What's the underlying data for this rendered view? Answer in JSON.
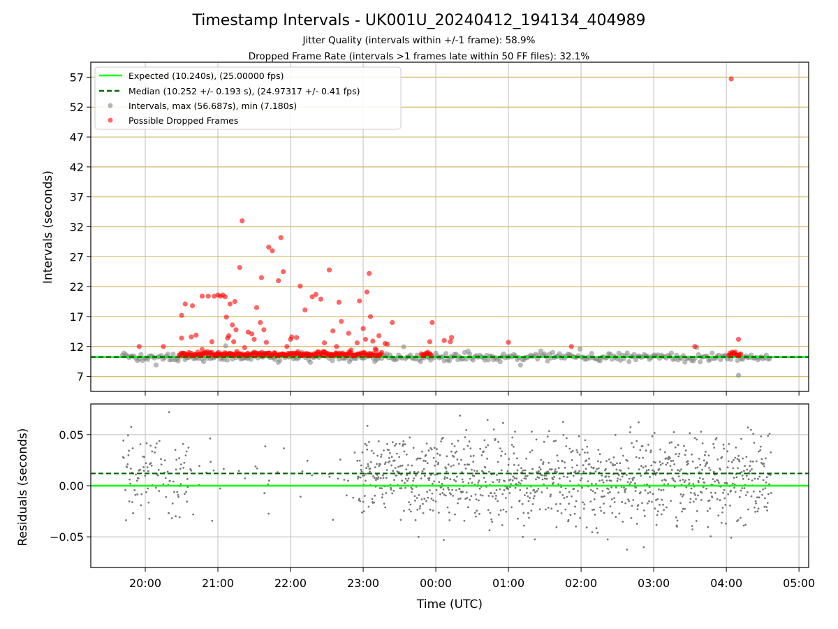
{
  "chart_data": {
    "title": "Timestamp Intervals - UK001U_20240412_194134_404989",
    "subtitle_1": "Jitter Quality (intervals within +/-1 frame): 58.9%",
    "subtitle_2": "Dropped Frame Rate (intervals >1 frames late within 50 FF files): 32.1%",
    "top_panel": {
      "type": "scatter",
      "ylabel": "Intervals (seconds)",
      "yticks": [
        "7",
        "12",
        "17",
        "22",
        "27",
        "32",
        "37",
        "42",
        "47",
        "52",
        "57"
      ],
      "ylim": [
        4.5,
        59.5
      ],
      "expected": 10.24,
      "median": 10.252,
      "legend_position": "upper-left",
      "legend": {
        "expected": "Expected (10.240s), (25.00000 fps)",
        "median": "Median (10.252 +/- 0.193 s), (24.97317 +/- 0.41 fps)",
        "intervals": "Intervals, max (56.687s), min (7.180s)",
        "dropped": "Possible Dropped Frames"
      },
      "dropped_points": [
        [
          "19:55",
          12.0
        ],
        [
          "20:15",
          12.0
        ],
        [
          "20:30",
          13.4
        ],
        [
          "20:30",
          17.2
        ],
        [
          "20:33",
          19.1
        ],
        [
          "20:38",
          13.6
        ],
        [
          "20:39",
          18.8
        ],
        [
          "20:42",
          13.9
        ],
        [
          "20:47",
          20.4
        ],
        [
          "20:52",
          20.4
        ],
        [
          "20:47",
          11.5
        ],
        [
          "20:55",
          12.8
        ],
        [
          "20:57",
          20.4
        ],
        [
          "21:00",
          20.6
        ],
        [
          "21:02",
          20.4
        ],
        [
          "21:04",
          20.6
        ],
        [
          "21:06",
          20.3
        ],
        [
          "21:07",
          16.9
        ],
        [
          "21:08",
          13.4
        ],
        [
          "21:09",
          13.8
        ],
        [
          "21:10",
          19.1
        ],
        [
          "21:12",
          15.6
        ],
        [
          "21:13",
          12.8
        ],
        [
          "21:14",
          19.5
        ],
        [
          "21:15",
          14.8
        ],
        [
          "21:18",
          25.2
        ],
        [
          "21:20",
          33.0
        ],
        [
          "21:22",
          11.8
        ],
        [
          "21:25",
          14.4
        ],
        [
          "21:28",
          14.1
        ],
        [
          "21:30",
          13.2
        ],
        [
          "21:32",
          18.5
        ],
        [
          "21:35",
          16.0
        ],
        [
          "21:36",
          23.5
        ],
        [
          "21:38",
          14.8
        ],
        [
          "21:40",
          12.7
        ],
        [
          "21:42",
          28.6
        ],
        [
          "21:45",
          28.0
        ],
        [
          "21:50",
          23.0
        ],
        [
          "21:52",
          30.2
        ],
        [
          "21:54",
          24.5
        ],
        [
          "21:57",
          12.0
        ],
        [
          "22:00",
          13.2
        ],
        [
          "22:01",
          13.6
        ],
        [
          "22:05",
          13.5
        ],
        [
          "22:08",
          22.1
        ],
        [
          "22:12",
          18.1
        ],
        [
          "22:18",
          20.3
        ],
        [
          "22:21",
          20.7
        ],
        [
          "22:25",
          19.9
        ],
        [
          "22:28",
          12.6
        ],
        [
          "22:32",
          24.8
        ],
        [
          "22:35",
          14.6
        ],
        [
          "22:38",
          12.0
        ],
        [
          "22:40",
          19.4
        ],
        [
          "22:42",
          16.2
        ],
        [
          "22:48",
          14.2
        ],
        [
          "22:50",
          11.4
        ],
        [
          "22:55",
          12.6
        ],
        [
          "22:57",
          19.6
        ],
        [
          "23:00",
          15.0
        ],
        [
          "23:02",
          13.2
        ],
        [
          "23:03",
          21.1
        ],
        [
          "23:05",
          24.2
        ],
        [
          "23:06",
          17.0
        ],
        [
          "23:08",
          12.9
        ],
        [
          "23:10",
          11.6
        ],
        [
          "23:13",
          13.8
        ],
        [
          "23:18",
          12.5
        ],
        [
          "23:20",
          12.4
        ],
        [
          "23:24",
          16.0
        ],
        [
          "23:55",
          12.8
        ],
        [
          "23:57",
          16.0
        ],
        [
          "00:07",
          13.0
        ],
        [
          "00:12",
          12.8
        ],
        [
          "00:13",
          13.5
        ],
        [
          "01:00",
          12.7
        ],
        [
          "01:52",
          12.0
        ],
        [
          "03:34",
          12.0
        ],
        [
          "04:04",
          56.7
        ],
        [
          "04:10",
          13.2
        ]
      ]
    },
    "bottom_panel": {
      "type": "scatter",
      "ylabel": "Residuals (seconds)",
      "yticks": [
        "−0.05",
        "0.00",
        "0.05"
      ],
      "ylim": [
        -0.08,
        0.08
      ],
      "expected_line": 0.0,
      "median_line": 0.012
    },
    "xaxis": {
      "xlabel": "Time (UTC)",
      "xticks": [
        "20:00",
        "21:00",
        "22:00",
        "23:00",
        "00:00",
        "01:00",
        "02:00",
        "03:00",
        "04:00",
        "05:00"
      ],
      "xlim": [
        "2024-04-12 19:15",
        "2024-04-13 05:08"
      ],
      "data_range": [
        "2024-04-12 19:41",
        "2024-04-13 04:37"
      ]
    },
    "colors": {
      "expected": "#00ff00",
      "median": "#006400",
      "intervals": "#808080",
      "dropped": "#ff0000",
      "grid": "#c8c8c8",
      "ygrid_top": "#d4b96a"
    }
  }
}
